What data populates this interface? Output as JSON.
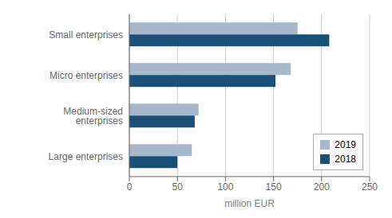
{
  "chart_data": {
    "type": "bar",
    "orientation": "horizontal",
    "categories": [
      "Small enterprises",
      "Micro enterprises",
      "Medium-sized enterprises",
      "Large enterprises"
    ],
    "series": [
      {
        "name": "2019",
        "color": "#a8b8cc",
        "values": [
          175,
          168,
          72,
          65
        ]
      },
      {
        "name": "2018",
        "color": "#1a4f78",
        "values": [
          208,
          152,
          68,
          50
        ]
      }
    ],
    "xlabel": "million EUR",
    "xlim": [
      0,
      250
    ],
    "xticks": [
      0,
      50,
      100,
      150,
      200,
      250
    ],
    "grid": true,
    "legend": "lower right"
  }
}
